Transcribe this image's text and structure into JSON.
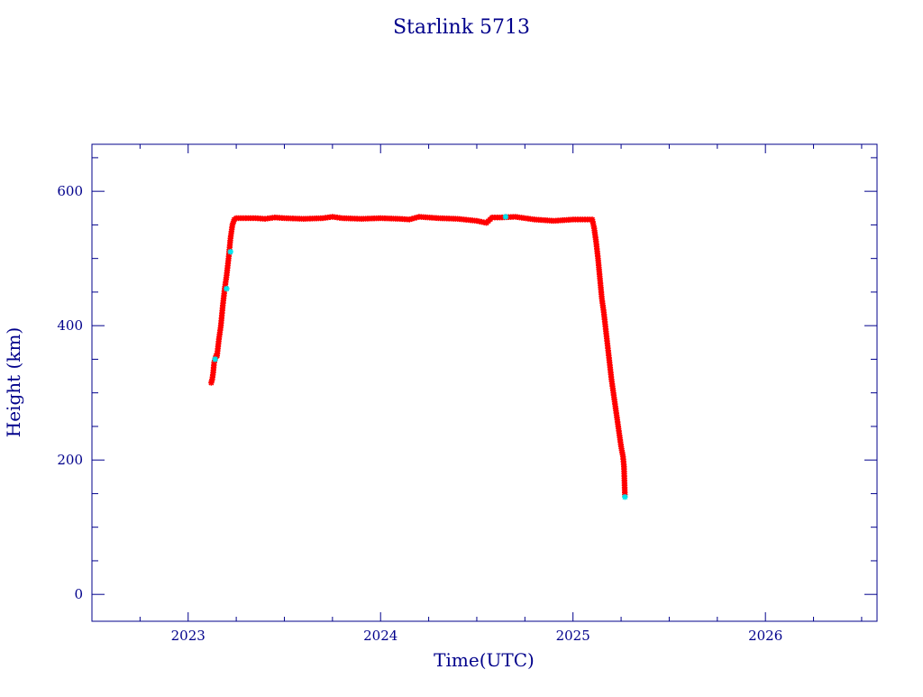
{
  "chart_data": {
    "type": "line",
    "title": "Starlink 5713",
    "xlabel": "Time(UTC)",
    "ylabel": "Height (km)",
    "xlim": [
      2022.5,
      2026.58
    ],
    "ylim": [
      -40,
      670
    ],
    "x_ticks": [
      2023,
      2024,
      2025,
      2026
    ],
    "x_tick_labels": [
      "2023",
      "2024",
      "2025",
      "2026"
    ],
    "y_ticks": [
      0,
      200,
      400,
      600
    ],
    "y_tick_labels": [
      "0",
      "200",
      "400",
      "600"
    ],
    "grid": false,
    "colors": {
      "axis": "#00008b",
      "line": "#0000cd",
      "points": "#ff0000",
      "highlight_points": "#00e5ee"
    },
    "series": [
      {
        "x": [
          2023.12,
          2023.125,
          2023.13,
          2023.135,
          2023.145,
          2023.15,
          2023.16,
          2023.17,
          2023.175,
          2023.18,
          2023.19,
          2023.2,
          2023.21,
          2023.22,
          2023.23,
          2023.24,
          2023.25,
          2023.27,
          2023.3,
          2023.35,
          2023.4,
          2023.45,
          2023.5,
          2023.6,
          2023.7,
          2023.75,
          2023.8,
          2023.9,
          2024.0,
          2024.1,
          2024.15,
          2024.2,
          2024.3,
          2024.4,
          2024.5,
          2024.55,
          2024.58,
          2024.62,
          2024.7,
          2024.8,
          2024.9,
          2025.0,
          2025.05,
          2025.1,
          2025.11,
          2025.12,
          2025.13,
          2025.14,
          2025.15,
          2025.16,
          2025.17,
          2025.18,
          2025.19,
          2025.2,
          2025.21,
          2025.22,
          2025.23,
          2025.24,
          2025.25,
          2025.26,
          2025.265,
          2025.27
        ],
        "y": [
          315,
          320,
          330,
          345,
          355,
          355,
          380,
          400,
          415,
          430,
          455,
          475,
          500,
          530,
          550,
          558,
          560,
          560,
          560,
          560,
          559,
          561,
          560,
          559,
          560,
          562,
          560,
          559,
          560,
          559,
          558,
          562,
          560,
          559,
          556,
          553,
          561,
          561,
          562,
          558,
          556,
          558,
          558,
          558,
          545,
          525,
          500,
          470,
          440,
          420,
          395,
          370,
          345,
          320,
          300,
          280,
          260,
          240,
          220,
          205,
          190,
          145
        ]
      }
    ],
    "highlight_points": {
      "x": [
        2023.14,
        2023.2,
        2023.22,
        2024.65,
        2025.27
      ],
      "y": [
        350,
        455,
        510,
        562,
        145
      ]
    }
  }
}
